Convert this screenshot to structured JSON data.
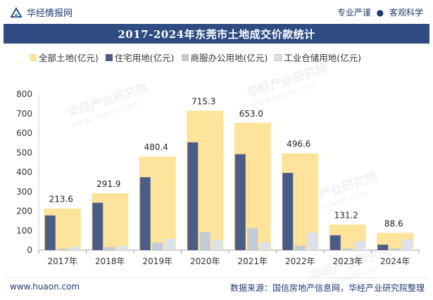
{
  "header": {
    "brand": "华经情报网",
    "tagline_left": "专业严谨",
    "tagline_sep": "●",
    "tagline_right": "客观科学"
  },
  "watermark": {
    "text": "华经产业研究院",
    "url": "www.huaon.com"
  },
  "footer": {
    "left": "www.huaon.com",
    "right": "数据来源：国信房地产信息网，华经产业研究院整理"
  },
  "colors": {
    "title_bg": "#2e4c82",
    "total": "#fde49a",
    "residential": "#4c5c88",
    "commercial": "#c3cad6",
    "industrial": "#dde1e9"
  },
  "chart_data": {
    "type": "bar",
    "title": "2017-2024年东莞市土地成交价款统计",
    "categories": [
      "2017年",
      "2018年",
      "2019年",
      "2020年",
      "2021年",
      "2022年",
      "2023年",
      "2024年"
    ],
    "ylim": [
      0,
      800
    ],
    "yticks": [
      0,
      100,
      200,
      300,
      400,
      500,
      600,
      700,
      800
    ],
    "xlabel": "",
    "ylabel": "",
    "legend_position": "top",
    "series": [
      {
        "name": "全部土地(亿元)",
        "values": [
          213.6,
          291.9,
          480.4,
          715.3,
          653.0,
          496.6,
          131.2,
          88.6
        ],
        "labels": [
          "213.6",
          "291.9",
          "480.4",
          "715.3",
          "653.0",
          "496.6",
          "131.2",
          "88.6"
        ]
      },
      {
        "name": "住宅用地(亿元)",
        "values": [
          178,
          243,
          374,
          553,
          492,
          396,
          76,
          28
        ]
      },
      {
        "name": "商服办公用地(亿元)",
        "values": [
          8,
          15,
          39,
          93,
          113,
          22,
          8,
          8
        ]
      },
      {
        "name": "工业仓储用地(亿元)",
        "values": [
          18,
          22,
          58,
          52,
          40,
          90,
          46,
          55
        ]
      }
    ]
  }
}
